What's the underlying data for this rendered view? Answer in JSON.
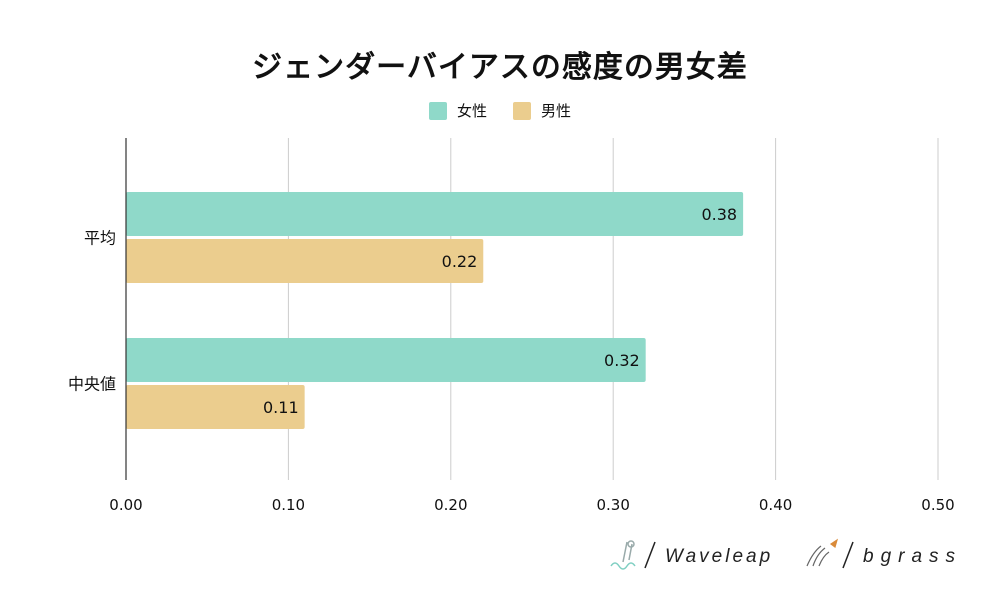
{
  "chart_data": {
    "type": "bar",
    "orientation": "horizontal",
    "title": "ジェンダーバイアスの感度の男女差",
    "categories": [
      "平均",
      "中央値"
    ],
    "series": [
      {
        "name": "女性",
        "color": "#8fd9c9",
        "values": [
          0.38,
          0.32
        ],
        "labels": [
          "0.38",
          "0.32"
        ]
      },
      {
        "name": "男性",
        "color": "#ebcd8e",
        "values": [
          0.22,
          0.11
        ],
        "labels": [
          "0.22",
          "0.11"
        ]
      }
    ],
    "xlim": [
      0,
      0.5
    ],
    "x_ticks": [
      "0.00",
      "0.10",
      "0.20",
      "0.30",
      "0.40",
      "0.50"
    ],
    "grid": true,
    "legend_position": "top"
  },
  "logos": {
    "brand1": "Waveleap",
    "brand2": "bgrass"
  }
}
